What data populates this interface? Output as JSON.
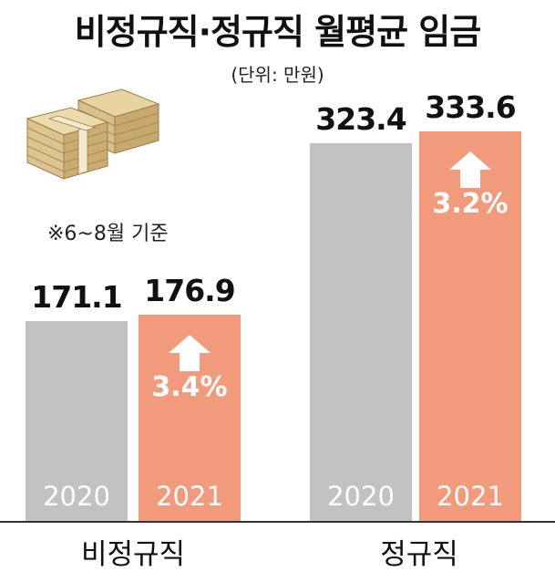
{
  "title": "비정규직·정규직 월평균 임금",
  "unit_note": "(단위: 만원)",
  "period_note": "※6~8월 기준",
  "colors": {
    "y2020": "#c1c2c4",
    "y2021": "#f29a7c"
  },
  "icons": [
    "money-stack-icon",
    "up-arrow-icon"
  ],
  "chart_data": {
    "type": "bar",
    "title": "비정규직·정규직 월평균 임금",
    "unit": "(단위: 만원)",
    "categories": [
      "비정규직",
      "정규직"
    ],
    "series": [
      {
        "name": "2020",
        "values": [
          171.1,
          323.4
        ]
      },
      {
        "name": "2021",
        "values": [
          176.9,
          333.6
        ]
      }
    ],
    "value_labels": {
      "2020": [
        "171.1",
        "323.4"
      ],
      "2021": [
        "176.9",
        "333.6"
      ]
    },
    "growth_labels": [
      "3.4%",
      "3.2%"
    ],
    "series_labels": [
      "2020",
      "2021"
    ],
    "ylim": [
      0,
      345
    ],
    "grid": false
  }
}
